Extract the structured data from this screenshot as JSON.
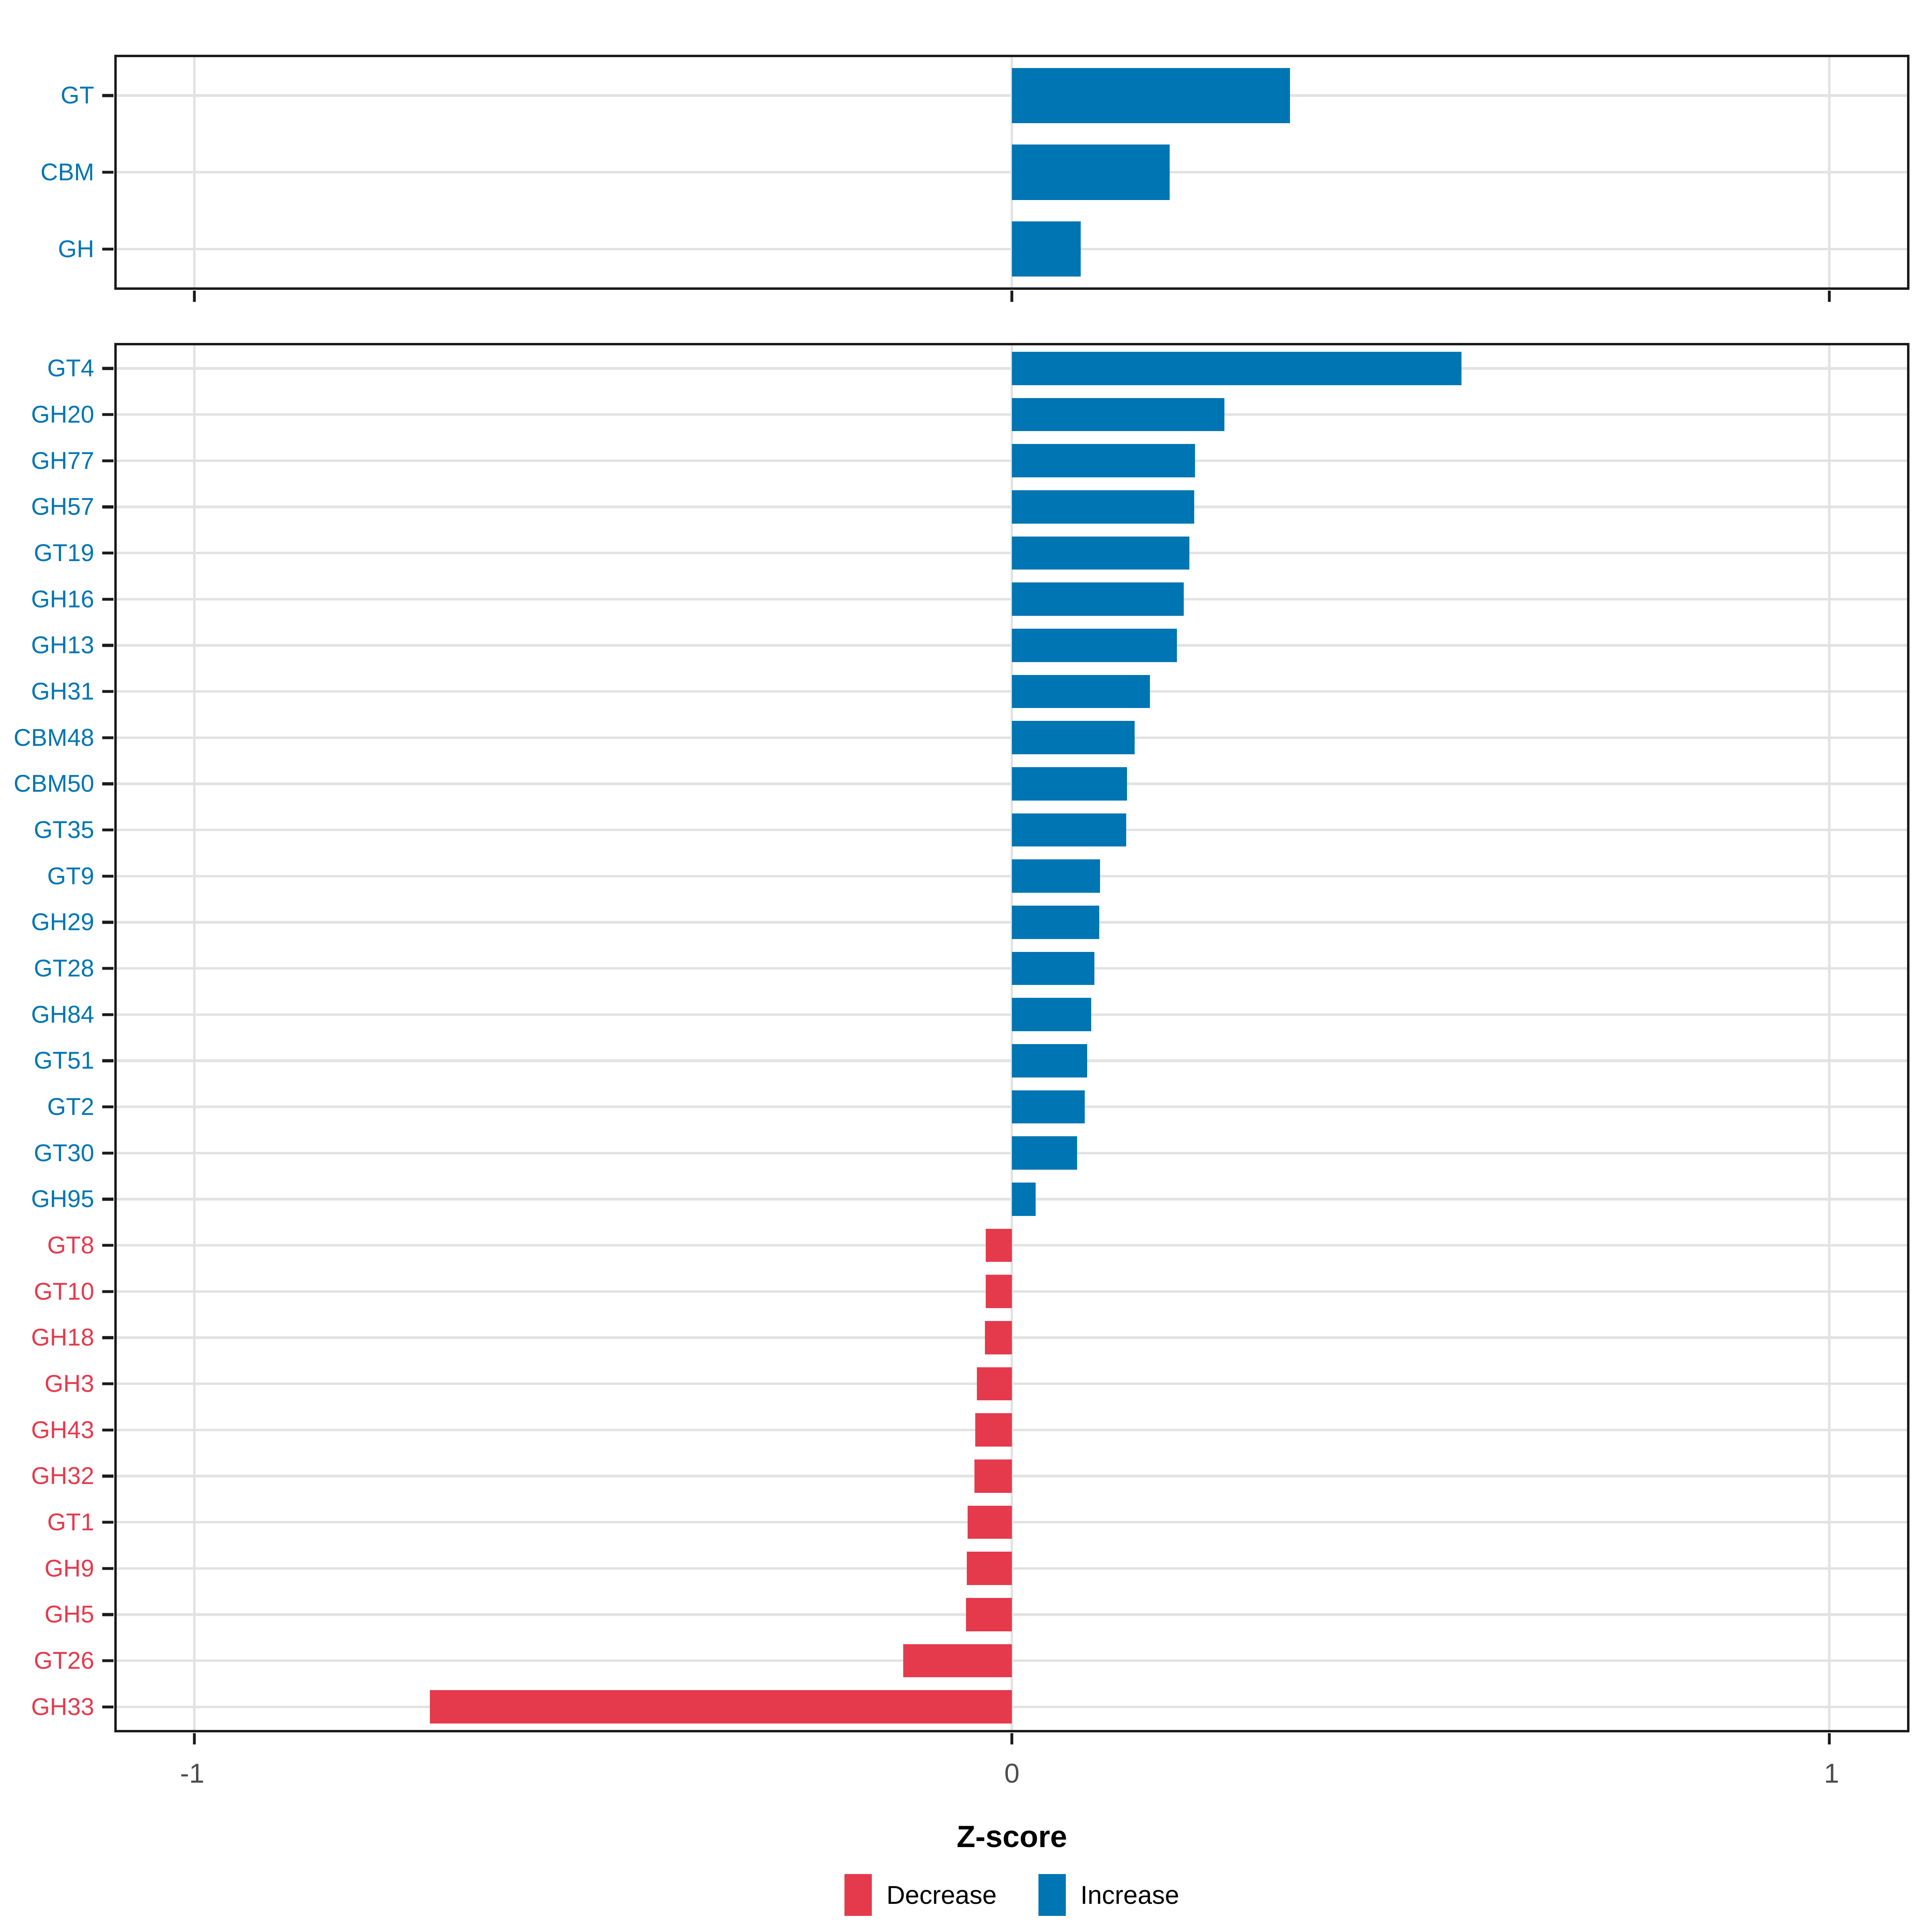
{
  "axis": {
    "label": "Z-score",
    "ticks": [
      "-1",
      "0",
      "1"
    ],
    "tick_values": [
      -1,
      0,
      1
    ],
    "xlim": [
      -1.095,
      1.095
    ],
    "tick_label_color": "#4d4d4d"
  },
  "colors": {
    "increase": "#0075b3",
    "decrease": "#e53a4c",
    "gridline": "#e2e2e2",
    "panel_border": "#1a1a1a",
    "background": "#ffffff"
  },
  "legend": {
    "items": [
      {
        "label": "Decrease",
        "color_key": "decrease"
      },
      {
        "label": "Increase",
        "color_key": "increase"
      }
    ],
    "position": "bottom"
  },
  "chart_data": [
    {
      "type": "bar",
      "orientation": "horizontal",
      "panel": "top-summary",
      "title": "",
      "xlabel": "Z-score",
      "xlim": [
        -1.095,
        1.095
      ],
      "x_ticks": [
        -1,
        0,
        1
      ],
      "grid": true,
      "categories": [
        "GT",
        "CBM",
        "GH"
      ],
      "values": [
        0.34,
        0.193,
        0.084
      ],
      "directions": [
        "Increase",
        "Increase",
        "Increase"
      ]
    },
    {
      "type": "bar",
      "orientation": "horizontal",
      "panel": "bottom-families",
      "title": "",
      "xlabel": "Z-score",
      "xlim": [
        -1.095,
        1.095
      ],
      "x_ticks": [
        -1,
        0,
        1
      ],
      "grid": true,
      "categories": [
        "GT4",
        "GH20",
        "GH77",
        "GH57",
        "GT19",
        "GH16",
        "GH13",
        "GH31",
        "CBM48",
        "CBM50",
        "GT35",
        "GT9",
        "GH29",
        "GT28",
        "GH84",
        "GT51",
        "GT2",
        "GT30",
        "GH95",
        "GT8",
        "GT10",
        "GH18",
        "GH3",
        "GH43",
        "GH32",
        "GT1",
        "GH9",
        "GH5",
        "GT26",
        "GH33"
      ],
      "values": [
        0.55,
        0.26,
        0.224,
        0.223,
        0.217,
        0.21,
        0.202,
        0.169,
        0.15,
        0.141,
        0.14,
        0.108,
        0.107,
        0.101,
        0.097,
        0.092,
        0.089,
        0.08,
        0.029,
        -0.032,
        -0.032,
        -0.033,
        -0.043,
        -0.045,
        -0.046,
        -0.054,
        -0.055,
        -0.056,
        -0.133,
        -0.712
      ],
      "directions": [
        "Increase",
        "Increase",
        "Increase",
        "Increase",
        "Increase",
        "Increase",
        "Increase",
        "Increase",
        "Increase",
        "Increase",
        "Increase",
        "Increase",
        "Increase",
        "Increase",
        "Increase",
        "Increase",
        "Increase",
        "Increase",
        "Increase",
        "Decrease",
        "Decrease",
        "Decrease",
        "Decrease",
        "Decrease",
        "Decrease",
        "Decrease",
        "Decrease",
        "Decrease",
        "Decrease",
        "Decrease"
      ]
    }
  ]
}
